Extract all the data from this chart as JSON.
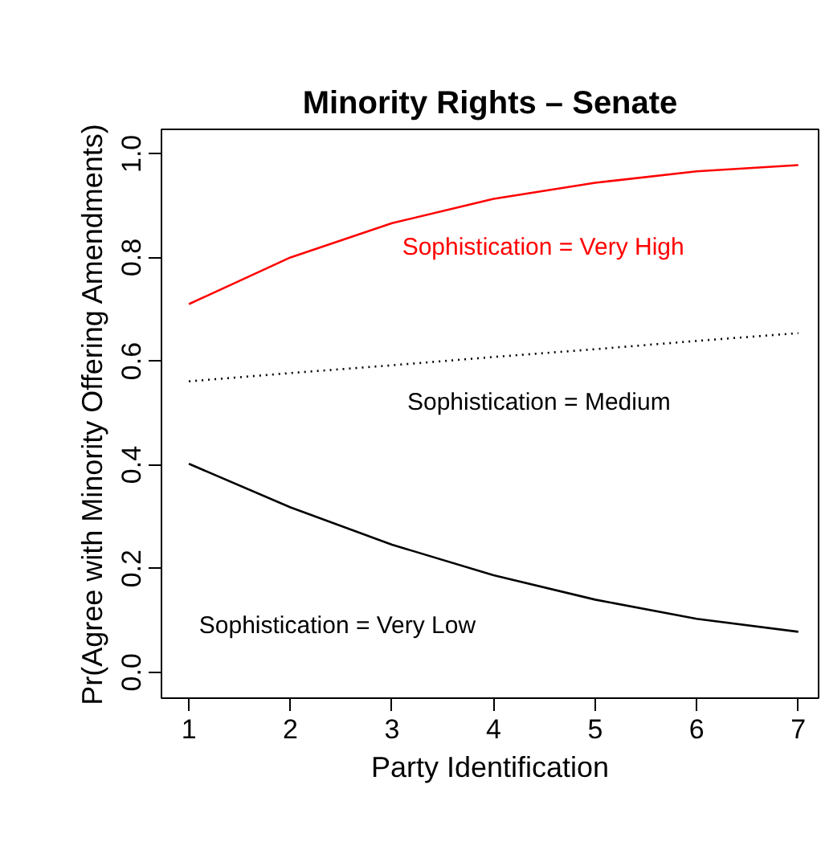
{
  "chart_data": {
    "type": "line",
    "title": "Minority Rights – Senate",
    "xlabel": "Party Identification",
    "ylabel": "Pr(Agree with Minority Offering Amendments)",
    "x": [
      1,
      2,
      3,
      4,
      5,
      6,
      7
    ],
    "xlim": [
      0.73,
      7.2
    ],
    "xticks": [
      1,
      2,
      3,
      4,
      5,
      6,
      7
    ],
    "ylim": [
      -0.05,
      1.047
    ],
    "yticks": [
      {
        "value": 0,
        "label": "0.0"
      },
      {
        "value": 0.2,
        "label": "0.2"
      },
      {
        "value": 0.4,
        "label": "0.4"
      },
      {
        "value": 0.6,
        "label": "0.6"
      },
      {
        "value": 0.8,
        "label": "0.8"
      },
      {
        "value": 1,
        "label": "1.0"
      }
    ],
    "grid": false,
    "marker": "none",
    "series": [
      {
        "name": "Sophistication = Very High",
        "color": "#ff0000",
        "line_style": "solid",
        "values": [
          0.71,
          0.8,
          0.866,
          0.913,
          0.944,
          0.966,
          0.978
        ]
      },
      {
        "name": "Sophistication = Medium",
        "color": "#000000",
        "line_style": "dotted",
        "values": [
          0.561,
          0.577,
          0.592,
          0.608,
          0.623,
          0.639,
          0.654
        ]
      },
      {
        "name": "Sophistication = Very Low",
        "color": "#000000",
        "line_style": "solid",
        "values": [
          0.402,
          0.318,
          0.246,
          0.187,
          0.14,
          0.103,
          0.078
        ]
      }
    ]
  }
}
